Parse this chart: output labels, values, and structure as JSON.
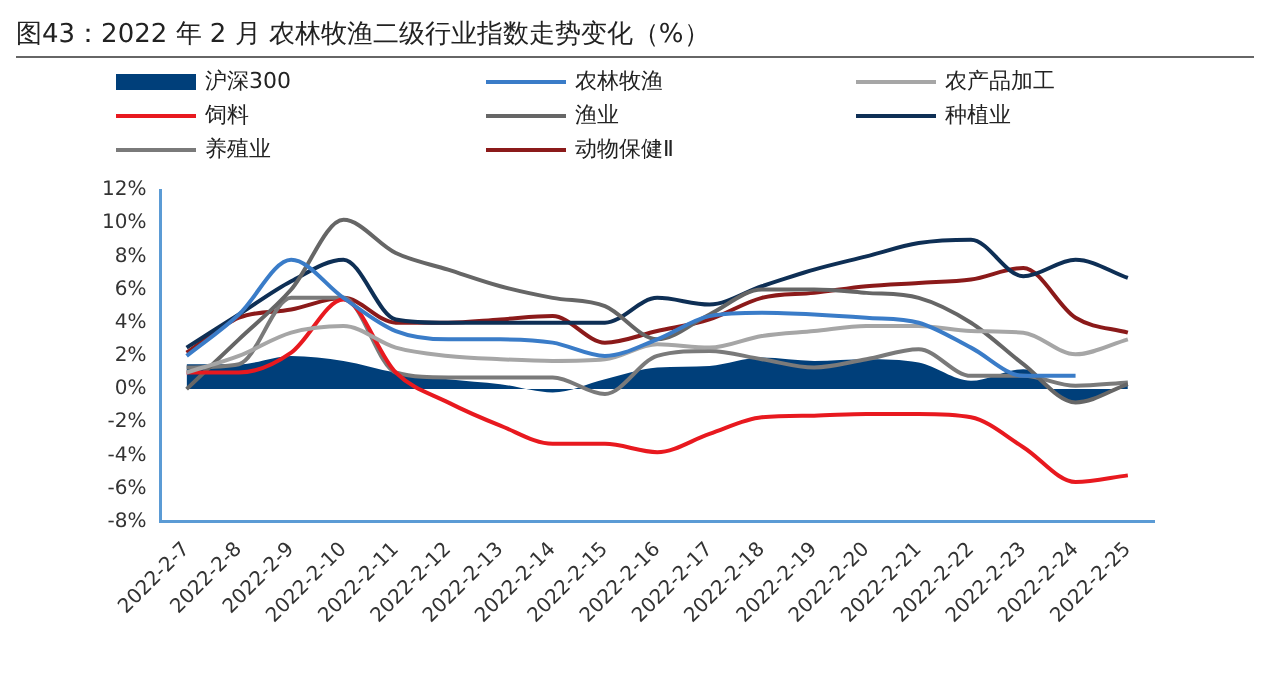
{
  "chart_data": {
    "type": "line",
    "title": "图43：2022 年 2 月 农林牧渔二级行业指数走势变化（%）",
    "categories": [
      "2022-2-7",
      "2022-2-8",
      "2022-2-9",
      "2022-2-10",
      "2022-2-11",
      "2022-2-12",
      "2022-2-13",
      "2022-2-14",
      "2022-2-15",
      "2022-2-16",
      "2022-2-17",
      "2022-2-18",
      "2022-2-19",
      "2022-2-20",
      "2022-2-21",
      "2022-2-22",
      "2022-2-23",
      "2022-2-24",
      "2022-2-25"
    ],
    "series": [
      {
        "name": "沪深300",
        "type": "area",
        "color": "#003f7a",
        "values": [
          1.5,
          1.5,
          2.0,
          1.7,
          1.0,
          0.6,
          0.3,
          -0.2,
          0.6,
          1.3,
          1.4,
          1.9,
          1.7,
          1.8,
          1.6,
          0.5,
          1.2,
          -0.8,
          0.3
        ]
      },
      {
        "name": "农林牧渔",
        "color": "#3a7cc8",
        "values": [
          2.0,
          4.5,
          7.8,
          5.5,
          3.5,
          3.0,
          3.0,
          2.8,
          2.0,
          3.0,
          4.4,
          4.6,
          4.5,
          4.3,
          4.0,
          2.5,
          0.8,
          0.8,
          null
        ]
      },
      {
        "name": "农产品加工",
        "color": "#a6a6a6",
        "values": [
          1.0,
          2.0,
          3.4,
          3.8,
          2.5,
          2.0,
          1.8,
          1.7,
          1.8,
          2.7,
          2.5,
          3.2,
          3.5,
          3.8,
          3.8,
          3.5,
          3.4,
          2.1,
          3.0
        ]
      },
      {
        "name": "饲料",
        "color": "#e8191f",
        "values": [
          1.0,
          1.0,
          2.2,
          5.4,
          1.0,
          -0.8,
          -2.2,
          -3.3,
          -3.3,
          -3.8,
          -2.7,
          -1.7,
          -1.6,
          -1.5,
          -1.5,
          -1.7,
          -3.5,
          -5.6,
          -5.2
        ]
      },
      {
        "name": "渔业",
        "color": "#666666",
        "values": [
          0.0,
          3.0,
          6.0,
          10.2,
          8.2,
          7.2,
          6.2,
          5.5,
          5.0,
          3.0,
          4.5,
          6.0,
          6.0,
          5.8,
          5.5,
          4.0,
          1.5,
          -0.8,
          0.3
        ]
      },
      {
        "name": "种植业",
        "color": "#0e2f55",
        "values": [
          2.5,
          4.5,
          6.5,
          7.8,
          4.2,
          4.0,
          4.0,
          4.0,
          4.0,
          5.5,
          5.1,
          6.2,
          7.2,
          8.0,
          8.8,
          9.0,
          6.8,
          7.8,
          6.7
        ]
      },
      {
        "name": "养殖业",
        "color": "#7a7a7a",
        "values": [
          1.3,
          1.5,
          5.5,
          5.5,
          1.0,
          0.7,
          0.7,
          0.7,
          -0.3,
          2.0,
          2.3,
          1.8,
          1.3,
          1.8,
          2.4,
          0.8,
          0.8,
          0.2,
          0.4
        ]
      },
      {
        "name": "动物保健Ⅱ",
        "color": "#8b1a1a",
        "values": [
          2.2,
          4.3,
          4.8,
          5.5,
          4.0,
          4.0,
          4.2,
          4.4,
          2.8,
          3.5,
          4.2,
          5.5,
          5.8,
          6.2,
          6.4,
          6.6,
          7.3,
          4.3,
          3.4
        ]
      }
    ],
    "ylim": [
      -8,
      12
    ],
    "yticks": [
      {
        "value": -8,
        "label": "-8%"
      },
      {
        "value": -6,
        "label": "-6%"
      },
      {
        "value": -4,
        "label": "-4%"
      },
      {
        "value": -2,
        "label": "-2%"
      },
      {
        "value": 0,
        "label": "0%"
      },
      {
        "value": 2,
        "label": "2%"
      },
      {
        "value": 4,
        "label": "4%"
      },
      {
        "value": 6,
        "label": "6%"
      },
      {
        "value": 8,
        "label": "8%"
      },
      {
        "value": 10,
        "label": "10%"
      },
      {
        "value": 12,
        "label": "12%"
      }
    ],
    "legend": "top"
  }
}
